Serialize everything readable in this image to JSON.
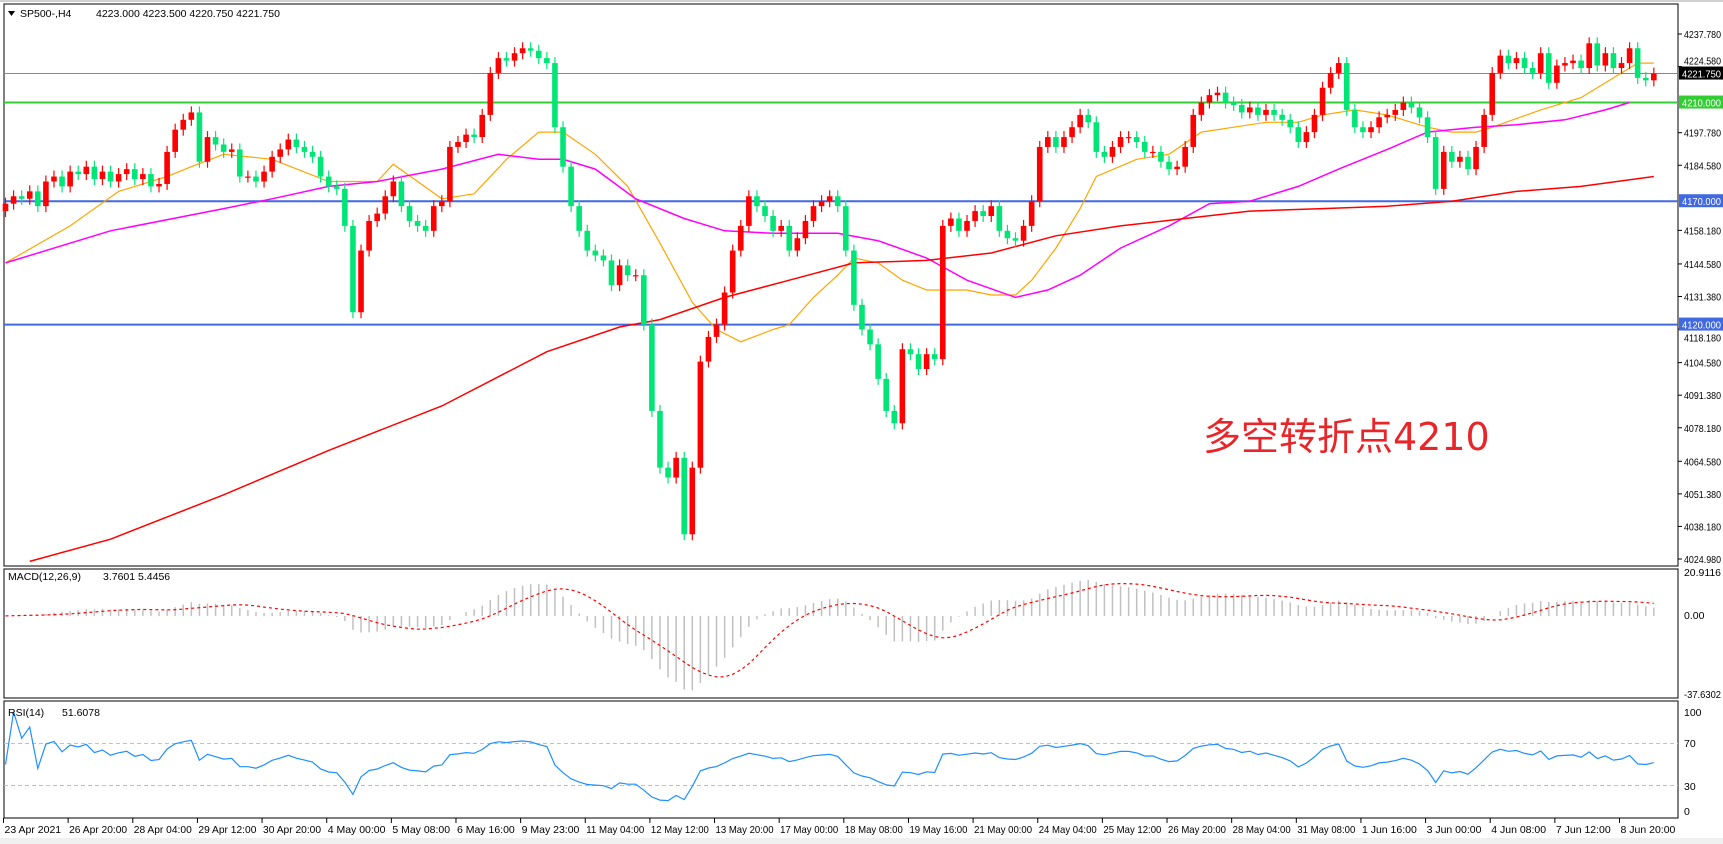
{
  "header": {
    "symbol_label": "SP500-,H4",
    "ohlc_text": "4223.000 4223.500 4220.750 4221.750",
    "menu_icon": "triangle-down-icon"
  },
  "annotation": "多空转折点4210",
  "colors": {
    "up": "#ff0000",
    "down": "#00e676",
    "ma_fast": "#ffa500",
    "ma_mid": "#ff00ff",
    "ma_slow": "#ff0000",
    "support_line": "#4169e1",
    "pivot_line": "#32cd32",
    "price_line": "#808890",
    "macd_hist": "#c0c0c0",
    "macd_signal": "#ff0000",
    "rsi": "#1e90ff"
  },
  "chart_data": [
    {
      "type": "candlestick",
      "title": "SP500-,H4",
      "ylim": [
        4024.98,
        4237.78
      ],
      "y_ticks": [
        "4237.780",
        "4224.580",
        "4210.000",
        "4197.780",
        "4184.580",
        "4170.000",
        "4158.180",
        "4144.580",
        "4131.380",
        "4118.180",
        "4104.580",
        "4091.380",
        "4078.180",
        "4064.580",
        "4051.380",
        "4038.180",
        "4024.980"
      ],
      "x_tick_every_bars": 8,
      "x_ticks": [
        "23 Apr 2021",
        "26 Apr 20:00",
        "28 Apr 04:00",
        "29 Apr 12:00",
        "30 Apr 20:00",
        "4 May 00:00",
        "5 May 08:00",
        "6 May 16:00",
        "9 May 23:00",
        "11 May 04:00",
        "12 May 12:00",
        "13 May 20:00",
        "17 May 00:00",
        "18 May 08:00",
        "19 May 16:00",
        "21 May 00:00",
        "24 May 04:00",
        "25 May 12:00",
        "26 May 20:00",
        "28 May 04:00",
        "31 May 08:00",
        "1 Jun 16:00",
        "3 Jun 00:00",
        "4 Jun 08:00",
        "7 Jun 12:00",
        "8 Jun 20:00"
      ],
      "close": [
        4169,
        4172,
        4171,
        4174,
        4168,
        4178,
        4180,
        4176,
        4182,
        4181,
        4184,
        4179,
        4182,
        4178,
        4181,
        4183,
        4179,
        4181,
        4176,
        4177,
        4190,
        4199,
        4203,
        4206,
        4186,
        4196,
        4193,
        4190,
        4191,
        4180,
        4180,
        4178,
        4182,
        4188,
        4191,
        4195,
        4192,
        4190,
        4188,
        4180,
        4176,
        4175,
        4160,
        4125,
        4150,
        4162,
        4165,
        4172,
        4178,
        4168,
        4162,
        4160,
        4158,
        4168,
        4170,
        4192,
        4194,
        4197,
        4196,
        4205,
        4222,
        4228,
        4227,
        4230,
        4232,
        4231,
        4228,
        4226,
        4200,
        4184,
        4168,
        4158,
        4150,
        4148,
        4146,
        4136,
        4144,
        4140,
        4140,
        4120,
        4085,
        4062,
        4058,
        4066,
        4035,
        4062,
        4105,
        4115,
        4120,
        4133,
        4150,
        4160,
        4172,
        4168,
        4164,
        4158,
        4160,
        4150,
        4155,
        4162,
        4168,
        4170,
        4172,
        4168,
        4150,
        4128,
        4118,
        4112,
        4098,
        4085,
        4080,
        4110,
        4108,
        4102,
        4108,
        4106,
        4160,
        4163,
        4158,
        4162,
        4166,
        4164,
        4168,
        4158,
        4155,
        4154,
        4160,
        4170,
        4192,
        4196,
        4192,
        4196,
        4200,
        4205,
        4202,
        4190,
        4188,
        4192,
        4196,
        4196,
        4194,
        4190,
        4190,
        4186,
        4183,
        4184,
        4192,
        4205,
        4210,
        4213,
        4214,
        4210,
        4209,
        4206,
        4208,
        4205,
        4207,
        4205,
        4203,
        4200,
        4194,
        4198,
        4205,
        4216,
        4222,
        4226,
        4207,
        4200,
        4198,
        4200,
        4204,
        4205,
        4207,
        4210,
        4208,
        4204,
        4196,
        4175,
        4190,
        4186,
        4188,
        4183,
        4192,
        4205,
        4222,
        4229,
        4226,
        4228,
        4224,
        4222,
        4230,
        4218,
        4225,
        4226,
        4227,
        4224,
        4234,
        4225,
        4230,
        4224,
        4226,
        4232,
        4220,
        4219,
        4221.75
      ],
      "current_price": "4221.750",
      "levels": [
        {
          "value": 4210,
          "label": "4210.000",
          "color": "#32cd32"
        },
        {
          "value": 4170,
          "label": "4170.000",
          "color": "#4169e1"
        },
        {
          "value": 4120,
          "label": "4120.000",
          "color": "#4169e1"
        }
      ],
      "moving_averages": [
        {
          "color": "#ffa500",
          "points": [
            [
              0,
              4145
            ],
            [
              8,
              4160
            ],
            [
              14,
              4174
            ],
            [
              20,
              4180
            ],
            [
              23,
              4184
            ],
            [
              27,
              4189
            ],
            [
              33,
              4187
            ],
            [
              40,
              4178
            ],
            [
              46,
              4178
            ],
            [
              48,
              4185
            ],
            [
              54,
              4171
            ],
            [
              58,
              4173
            ],
            [
              62,
              4187
            ],
            [
              66,
              4198
            ],
            [
              69,
              4198
            ],
            [
              73,
              4189
            ],
            [
              77,
              4176
            ],
            [
              81,
              4153
            ],
            [
              85,
              4129
            ],
            [
              88,
              4118
            ],
            [
              91,
              4113
            ],
            [
              95,
              4118
            ],
            [
              97,
              4120
            ],
            [
              100,
              4131
            ],
            [
              103,
              4140
            ],
            [
              105,
              4147
            ],
            [
              108,
              4145
            ],
            [
              111,
              4138
            ],
            [
              114,
              4134
            ],
            [
              119,
              4134
            ],
            [
              122,
              4132
            ],
            [
              125,
              4132
            ],
            [
              127,
              4138
            ],
            [
              130,
              4151
            ],
            [
              133,
              4167
            ],
            [
              135,
              4180
            ],
            [
              140,
              4187
            ],
            [
              144,
              4189
            ],
            [
              148,
              4198
            ],
            [
              152,
              4200
            ],
            [
              156,
              4202
            ],
            [
              160,
              4202
            ],
            [
              163,
              4205
            ],
            [
              167,
              4207
            ],
            [
              171,
              4205
            ],
            [
              174,
              4202
            ],
            [
              176,
              4200
            ],
            [
              179,
              4198
            ],
            [
              182,
              4198
            ],
            [
              184,
              4200
            ],
            [
              190,
              4207
            ],
            [
              195,
              4212
            ],
            [
              199,
              4220
            ],
            [
              202,
              4226
            ],
            [
              204,
              4226
            ]
          ]
        },
        {
          "color": "#ff00ff",
          "points": [
            [
              0,
              4145
            ],
            [
              13,
              4158
            ],
            [
              27,
              4167
            ],
            [
              33,
              4171
            ],
            [
              40,
              4176
            ],
            [
              46,
              4178
            ],
            [
              54,
              4183
            ],
            [
              61,
              4189
            ],
            [
              66,
              4187
            ],
            [
              69,
              4187
            ],
            [
              73,
              4183
            ],
            [
              78,
              4171
            ],
            [
              84,
              4163
            ],
            [
              89,
              4158
            ],
            [
              95,
              4157
            ],
            [
              103,
              4157
            ],
            [
              108,
              4154
            ],
            [
              114,
              4147
            ],
            [
              119,
              4138
            ],
            [
              125,
              4131
            ],
            [
              129,
              4134
            ],
            [
              133,
              4140
            ],
            [
              138,
              4151
            ],
            [
              144,
              4160
            ],
            [
              149,
              4169
            ],
            [
              154,
              4170
            ],
            [
              160,
              4176
            ],
            [
              165,
              4183
            ],
            [
              171,
              4191
            ],
            [
              176,
              4198
            ],
            [
              182,
              4200
            ],
            [
              187,
              4201
            ],
            [
              193,
              4203
            ],
            [
              198,
              4207
            ],
            [
              201,
              4210
            ]
          ]
        },
        {
          "color": "#ff0000",
          "points": [
            [
              3,
              4024
            ],
            [
              13,
              4033
            ],
            [
              27,
              4051
            ],
            [
              40,
              4069
            ],
            [
              54,
              4087
            ],
            [
              67,
              4109
            ],
            [
              76,
              4119
            ],
            [
              81,
              4122
            ],
            [
              89,
              4131
            ],
            [
              97,
              4138
            ],
            [
              105,
              4145
            ],
            [
              114,
              4146
            ],
            [
              122,
              4149
            ],
            [
              130,
              4156
            ],
            [
              138,
              4160
            ],
            [
              146,
              4163
            ],
            [
              154,
              4166
            ],
            [
              163,
              4167
            ],
            [
              171,
              4168
            ],
            [
              179,
              4170
            ],
            [
              187,
              4174
            ],
            [
              195,
              4176
            ],
            [
              204,
              4180
            ]
          ]
        }
      ]
    },
    {
      "type": "bar",
      "title": "MACD(12,26,9)",
      "values_text": "3.7601 5.4456",
      "ylim": [
        -37.6302,
        20.9116
      ],
      "y_ticks": [
        "20.9116",
        "0.00",
        "-37.6302"
      ]
    },
    {
      "type": "line",
      "title": "RSI(14)",
      "value_text": "51.6078",
      "ylim": [
        0,
        100
      ],
      "y_ticks": [
        "100",
        "70",
        "30",
        "0"
      ],
      "levels": [
        70,
        30
      ]
    }
  ]
}
